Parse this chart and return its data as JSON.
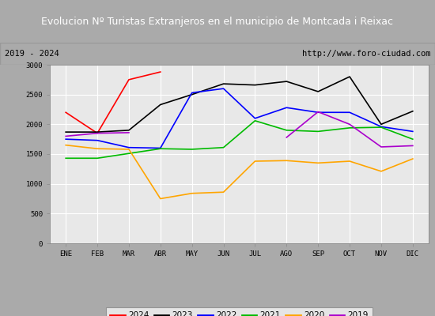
{
  "title": "Evolucion Nº Turistas Extranjeros en el municipio de Montcada i Reixac",
  "subtitle_left": "2019 - 2024",
  "subtitle_right": "http://www.foro-ciudad.com",
  "months": [
    "ENE",
    "FEB",
    "MAR",
    "ABR",
    "MAY",
    "JUN",
    "JUL",
    "AGO",
    "SEP",
    "OCT",
    "NOV",
    "DIC"
  ],
  "years_data": {
    "2024": [
      2200,
      1850,
      2750,
      2880,
      null,
      null,
      null,
      null,
      null,
      null,
      null,
      null
    ],
    "2023": [
      1870,
      1870,
      1900,
      2330,
      2500,
      2680,
      2660,
      2720,
      2550,
      2800,
      2000,
      2220
    ],
    "2022": [
      1750,
      1730,
      1610,
      1600,
      2530,
      2600,
      2100,
      2280,
      2200,
      2200,
      1960,
      1880
    ],
    "2021": [
      1430,
      1430,
      1510,
      1590,
      1580,
      1610,
      2060,
      1900,
      1880,
      1940,
      1950,
      1750
    ],
    "2020": [
      1650,
      1590,
      1580,
      750,
      840,
      860,
      1380,
      1390,
      1350,
      1380,
      1210,
      1420
    ],
    "2019": [
      1800,
      1850,
      1860,
      null,
      null,
      null,
      null,
      1780,
      2210,
      2000,
      1620,
      1640
    ]
  },
  "series_colors": {
    "2024": "#ff0000",
    "2023": "#000000",
    "2022": "#0000ff",
    "2021": "#00bb00",
    "2020": "#ffa500",
    "2019": "#aa00cc"
  },
  "legend_order": [
    "2024",
    "2023",
    "2022",
    "2021",
    "2020",
    "2019"
  ],
  "ylim": [
    0,
    3000
  ],
  "yticks": [
    0,
    500,
    1000,
    1500,
    2000,
    2500,
    3000
  ],
  "title_bg_color": "#4477bb",
  "title_text_color": "#ffffff",
  "subtitle_bg_color": "#e8e8e8",
  "plot_bg_color": "#e8e8e8",
  "grid_color": "#ffffff",
  "fig_bg_color": "#aaaaaa",
  "border_color": "#888888"
}
